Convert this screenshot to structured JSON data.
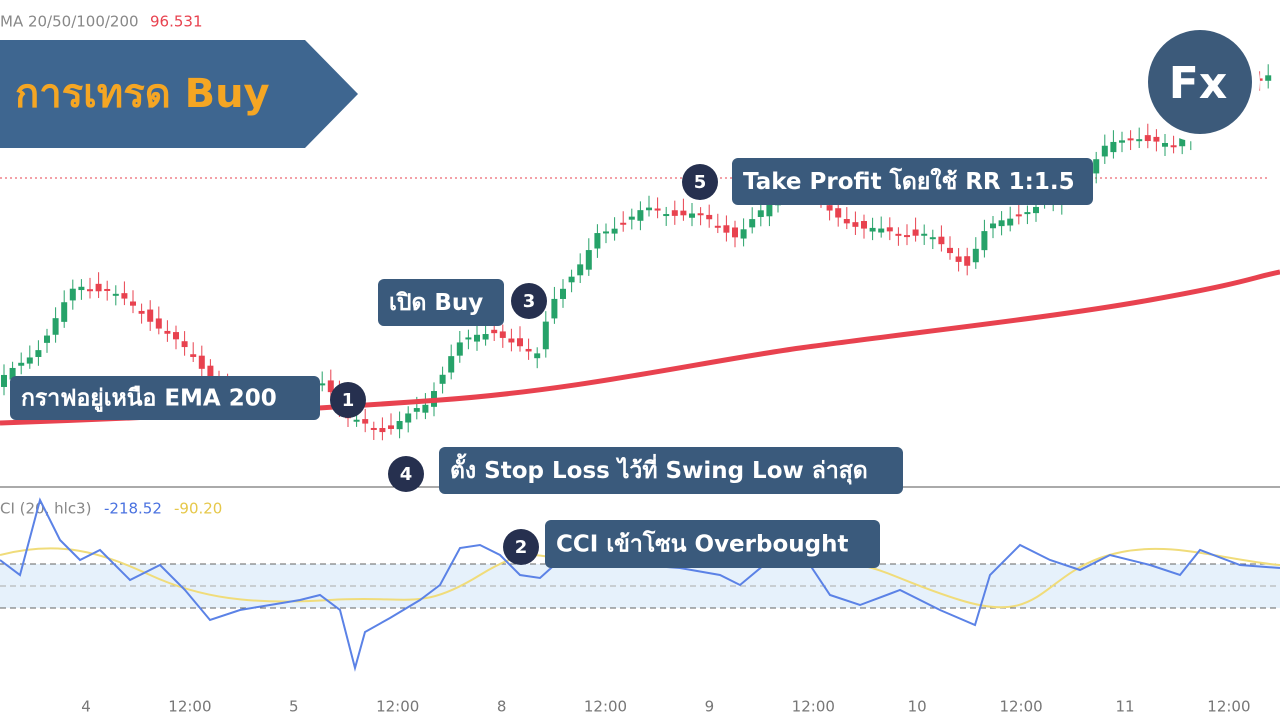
{
  "header": {
    "title": "การเทรด Buy",
    "logo": "Fx"
  },
  "indicators": {
    "ema": {
      "label": "MA 20/50/100/200",
      "value": "96.531"
    },
    "cci": {
      "label": "CI (20, hlc3)",
      "value1": "-218.52",
      "value2": "-90.20"
    }
  },
  "annotations": [
    {
      "step": "1",
      "text": "กราฟอยู่เหนือ EMA 200"
    },
    {
      "step": "2",
      "text": "CCI เข้าโซน Overbought"
    },
    {
      "step": "3",
      "text": "เปิด Buy"
    },
    {
      "step": "4",
      "text": "ตั้ง Stop Loss ไว้ที่ Swing Low ล่าสุด"
    },
    {
      "step": "5",
      "text": "Take Profit โดยใช้ RR 1:1.5"
    }
  ],
  "time_axis": [
    "4",
    "12:00",
    "5",
    "12:00",
    "8",
    "12:00",
    "9",
    "12:00",
    "10",
    "12:00",
    "11",
    "12:00"
  ]
}
